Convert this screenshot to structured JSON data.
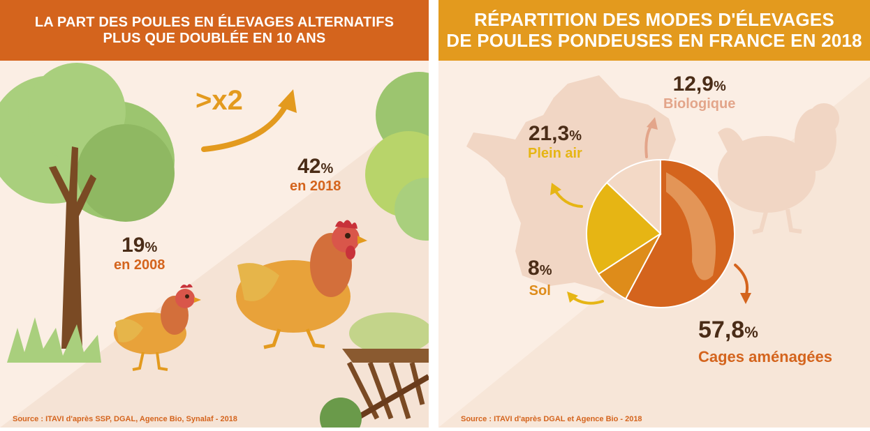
{
  "colors": {
    "orange_dark": "#d4641d",
    "orange_banner": "#e39a1e",
    "yellow": "#e6b514",
    "brown_text": "#4a2c17",
    "pink": "#e3a58a",
    "bg": "#fbeee4"
  },
  "left": {
    "title_line1": "LA PART DES POULES EN ÉLEVAGES ALTERNATIFS",
    "title_line2": "PLUS QUE DOUBLÉE EN 10 ANS",
    "multiplier": ">x2",
    "stat_2008": {
      "value": "19",
      "unit": "%",
      "label": "en 2008"
    },
    "stat_2018": {
      "value": "42",
      "unit": "%",
      "label": "en 2018"
    },
    "source": "Source : ITAVI d'après SSP, DGAL, Agence Bio, Synalaf - 2018"
  },
  "right": {
    "title_line1": "RÉPARTITION DES MODES D'ÉLEVAGES",
    "title_line2": "DE POULES PONDEUSES EN FRANCE EN 2018",
    "source": "Source : ITAVI d'après DGAL et Agence Bio - 2018"
  },
  "chart_data": [
    {
      "type": "bar",
      "title": "LA PART DES POULES EN ÉLEVAGES ALTERNATIFS PLUS QUE DOUBLÉE EN 10 ANS",
      "categories": [
        "en 2008",
        "en 2018"
      ],
      "values": [
        19,
        42
      ]
    },
    {
      "type": "pie",
      "title": "RÉPARTITION DES MODES D'ÉLEVAGES DE POULES PONDEUSES EN FRANCE EN 2018",
      "slices": [
        {
          "label": "Cages aménagées",
          "value": 57.8,
          "display": "57,8",
          "color": "#d4641d"
        },
        {
          "label": "Sol",
          "value": 8,
          "display": "8",
          "color": "#de8c1a"
        },
        {
          "label": "Plein air",
          "value": 21.3,
          "display": "21,3",
          "color": "#e6b514"
        },
        {
          "label": "Biologique",
          "value": 12.9,
          "display": "12,9",
          "color": "#f3d9c6"
        }
      ],
      "unit": "%"
    }
  ]
}
